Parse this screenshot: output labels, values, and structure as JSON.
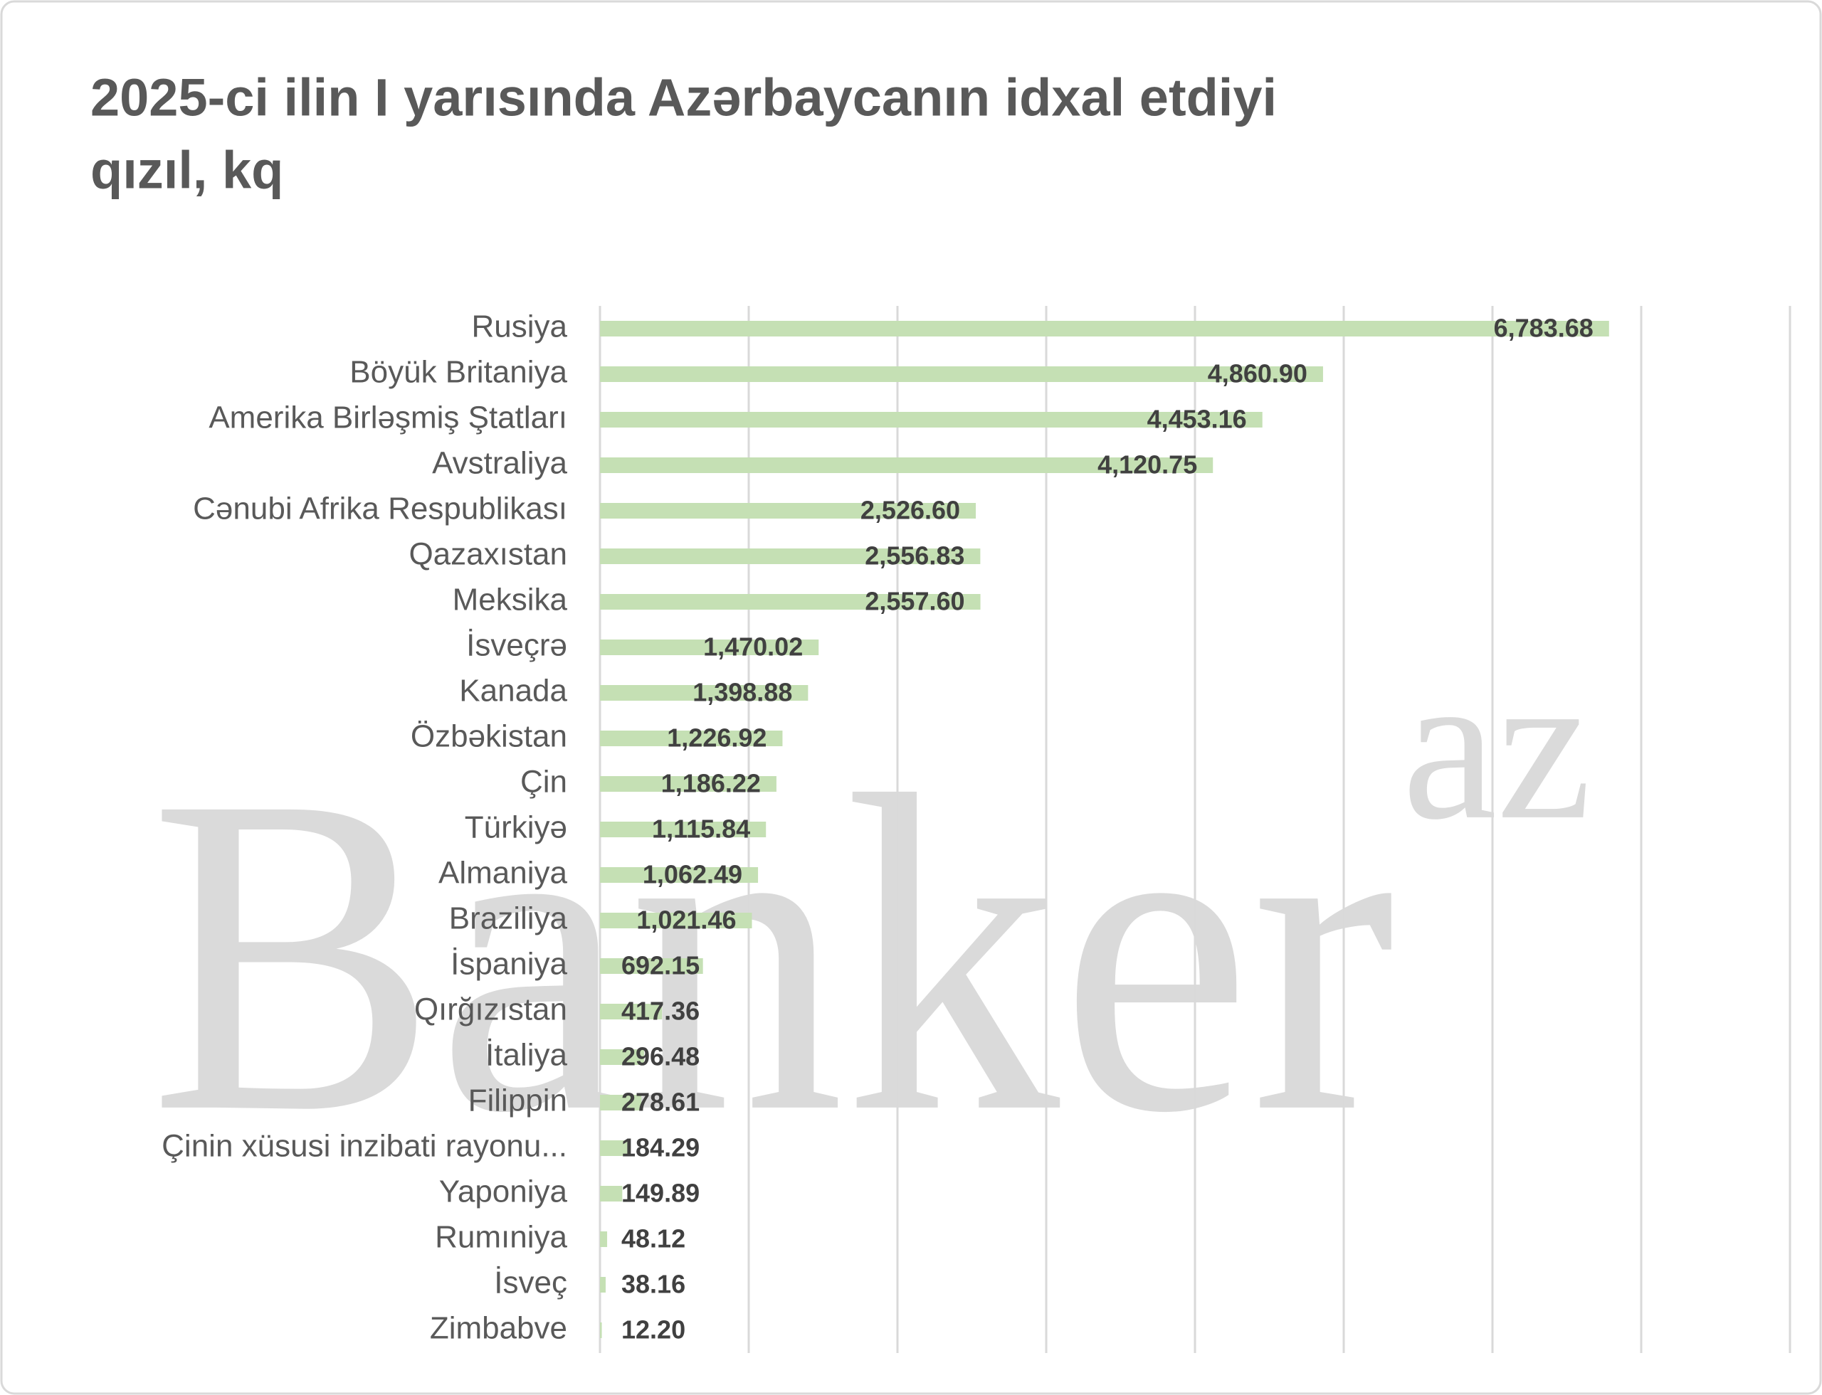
{
  "chart_data": {
    "type": "bar",
    "orientation": "horizontal",
    "title": [
      "2025-ci ilin I yarısında Azərbaycanın idxal etdiyi",
      "qızıl, kq"
    ],
    "watermark": [
      "Banker",
      "az"
    ],
    "categories": [
      "Rusiya",
      "Böyük Britaniya",
      "Amerika Birləşmiş Ştatları",
      "Avstraliya",
      "Cənubi Afrika Respublikası",
      "Qazaxıstan",
      "Meksika",
      "İsveçrə",
      "Kanada",
      "Özbəkistan",
      "Çin",
      "Türkiyə",
      "Almaniya",
      "Braziliya",
      "İspaniya",
      "Qırğızıstan",
      "İtaliya",
      "Filippin",
      "Çinin xüsusi inzibati rayonu...",
      "Yaponiya",
      "Rumıniya",
      "İsveç",
      "Zimbabve"
    ],
    "values": [
      6783.68,
      4860.9,
      4453.16,
      4120.75,
      2526.6,
      2556.83,
      2557.6,
      1470.02,
      1398.88,
      1226.92,
      1186.22,
      1115.84,
      1062.49,
      1021.46,
      692.15,
      417.36,
      296.48,
      278.61,
      184.29,
      149.89,
      48.12,
      38.16,
      12.2
    ],
    "value_labels": [
      "6,783.68",
      "4,860.90",
      "4,453.16",
      "4,120.75",
      "2,526.60",
      "2,556.83",
      "2,557.60",
      "1,470.02",
      "1,398.88",
      "1,226.92",
      "1,186.22",
      "1,115.84",
      "1,062.49",
      "1,021.46",
      "692.15",
      "417.36",
      "296.48",
      "278.61",
      "184.29",
      "149.89",
      "48.12",
      "38.16",
      "12.20"
    ],
    "color": "#c5e0b4",
    "xlim": [
      0,
      8000
    ],
    "xticks": [
      0,
      1000,
      2000,
      3000,
      4000,
      5000,
      6000,
      7000,
      8000
    ],
    "grid": true
  }
}
